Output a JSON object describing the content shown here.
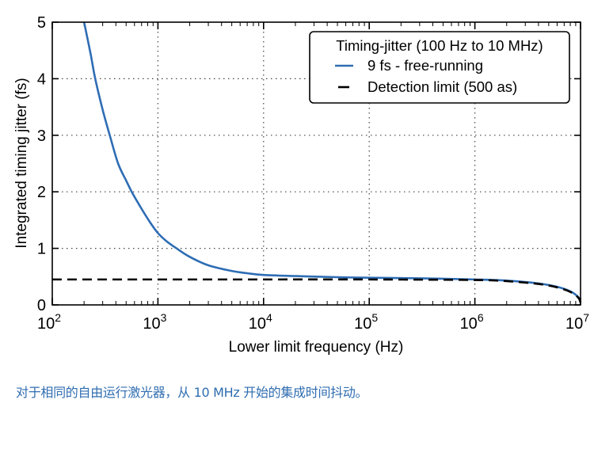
{
  "chart_data": {
    "type": "line",
    "title": "",
    "xlabel": "Lower limit frequency (Hz)",
    "ylabel": "Integrated timing jitter (fs)",
    "xscale": "log",
    "xlim": [
      100,
      10000000
    ],
    "ylim": [
      0,
      5
    ],
    "x_ticks": [
      {
        "value": 100,
        "base": "10",
        "exp": "2"
      },
      {
        "value": 1000,
        "base": "10",
        "exp": "3"
      },
      {
        "value": 10000,
        "base": "10",
        "exp": "4"
      },
      {
        "value": 100000,
        "base": "10",
        "exp": "5"
      },
      {
        "value": 1000000,
        "base": "10",
        "exp": "6"
      },
      {
        "value": 10000000,
        "base": "10",
        "exp": "7"
      }
    ],
    "y_ticks": [
      "0",
      "1",
      "2",
      "3",
      "4",
      "5"
    ],
    "grid": true,
    "legend": {
      "title": "Timing-jitter (100 Hz to 10 MHz)",
      "placement": "top-right",
      "entries": [
        {
          "label": "9 fs - free-running",
          "color": "#2e6db4",
          "style": "solid"
        },
        {
          "label": "Detection limit (500 as)",
          "color": "#000000",
          "style": "dashed"
        }
      ]
    },
    "series": [
      {
        "name": "9 fs - free-running",
        "color": "#2e6db4",
        "style": "solid",
        "x": [
          200,
          230,
          255,
          300,
          350,
          420,
          500,
          565,
          700,
          850,
          1000,
          1200,
          1500,
          2000,
          3000,
          5000,
          7000,
          10000,
          20000,
          50000,
          100000,
          300000,
          1000000,
          2000000,
          4000000,
          6000000,
          8000000,
          9500000,
          10000000
        ],
        "y": [
          5.0,
          4.45,
          4.0,
          3.45,
          3.0,
          2.5,
          2.2,
          2.0,
          1.7,
          1.45,
          1.27,
          1.13,
          1.0,
          0.85,
          0.7,
          0.6,
          0.56,
          0.53,
          0.51,
          0.49,
          0.48,
          0.47,
          0.45,
          0.43,
          0.38,
          0.32,
          0.24,
          0.14,
          0.05
        ]
      },
      {
        "name": "Detection limit (500 as)",
        "color": "#000000",
        "style": "dashed",
        "x": [
          100,
          1000,
          10000,
          100000,
          1000000,
          2000000,
          4000000,
          6000000,
          8000000,
          9500000,
          10000000
        ],
        "y": [
          0.45,
          0.45,
          0.45,
          0.45,
          0.44,
          0.42,
          0.37,
          0.31,
          0.23,
          0.13,
          0.04
        ]
      }
    ]
  },
  "caption": "对于相同的自由运行激光器，从 10 MHz 开始的集成时间抖动。"
}
